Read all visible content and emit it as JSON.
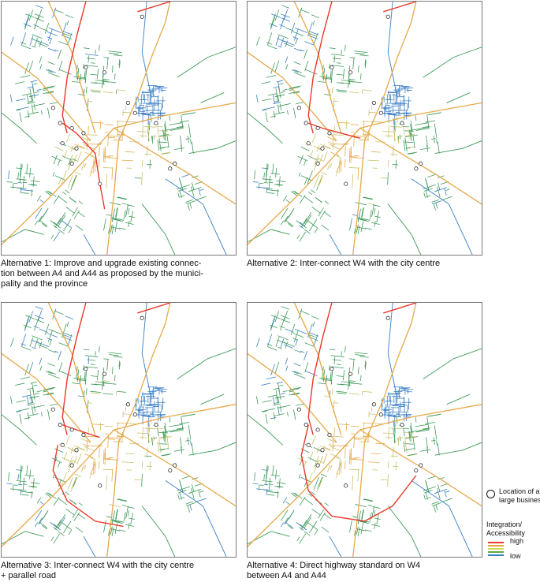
{
  "panels": [
    {
      "id": "alt1",
      "caption_lines": [
        "Alternative 1: Improve and upgrade existing connec-",
        "tion between A4 and A44 as proposed by the munici-",
        "pality and the province"
      ],
      "highway": "upgrade"
    },
    {
      "id": "alt2",
      "caption_lines": [
        "Alternative 2: Inter-connect W4 with the city centre"
      ],
      "highway": "interconnect"
    },
    {
      "id": "alt3",
      "caption_lines": [
        "Alternative 3: Inter-connect W4 with the city centre",
        "+ parallel road"
      ],
      "highway": "parallel"
    },
    {
      "id": "alt4",
      "caption_lines": [
        "Alternative 4: Direct highway standard on W4",
        "between A4 and A44"
      ],
      "highway": "ring"
    }
  ],
  "legend": {
    "business_label": "Location of a large business",
    "scale_title": "Integration/ Accessibility",
    "high_label": "high",
    "low_label": "low",
    "ramp_colors": [
      "#e8392a",
      "#f0a23a",
      "#d8d860",
      "#5aa845",
      "#3a7fc8"
    ]
  },
  "colors": {
    "high": "#e8392a",
    "upper": "#e6a94a",
    "mid": "#c9c26a",
    "lower": "#3f9a5a",
    "low": "#3b7fc4",
    "frame": "#777777"
  }
}
